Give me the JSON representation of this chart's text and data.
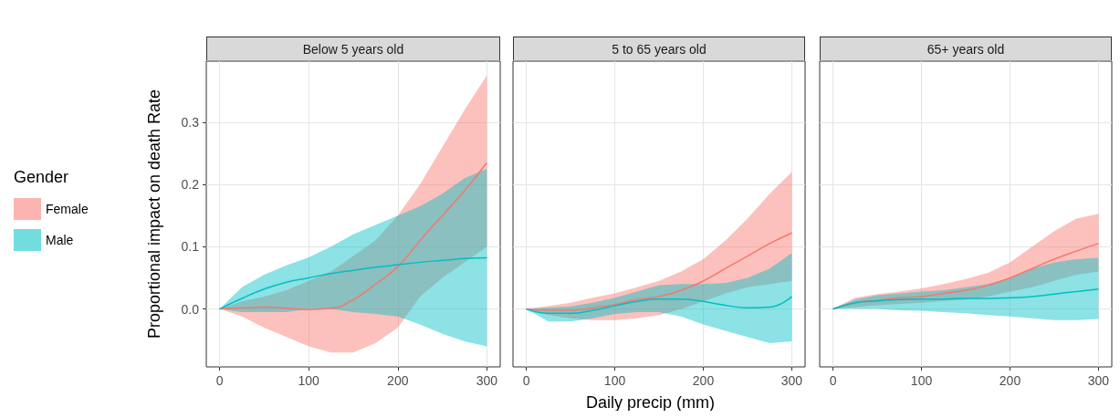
{
  "chart_data": [
    {
      "type": "line",
      "title": "Below 5 years old",
      "ylabel": "Proportional impact on death Rate",
      "legend_title": "Gender",
      "legend": "left",
      "grid": true,
      "x": [
        0,
        25,
        50,
        75,
        100,
        125,
        150,
        175,
        200,
        225,
        250,
        275,
        300
      ],
      "xlim": [
        -15,
        315
      ],
      "xticks": [
        0,
        100,
        200,
        300
      ],
      "ylim": [
        -0.093,
        0.398
      ],
      "yticks": [
        {
          "value": 0,
          "label": "0.0"
        },
        0.1,
        0.2,
        0.3
      ],
      "series": [
        {
          "name": "Female",
          "color": "#f8766d",
          "values": [
            0,
            0.002,
            0.003,
            0.001,
            -0.001,
            0.001,
            0.015,
            0.04,
            0.068,
            0.11,
            0.15,
            0.19,
            0.235
          ],
          "lower": [
            0,
            -0.012,
            -0.03,
            -0.045,
            -0.06,
            -0.07,
            -0.07,
            -0.055,
            -0.03,
            0.02,
            0.05,
            0.075,
            0.1
          ],
          "upper": [
            0,
            0.012,
            0.02,
            0.03,
            0.045,
            0.06,
            0.085,
            0.11,
            0.15,
            0.2,
            0.26,
            0.32,
            0.375
          ]
        },
        {
          "name": "Male",
          "color": "#00bfc4",
          "values": [
            0,
            0.017,
            0.032,
            0.043,
            0.05,
            0.057,
            0.062,
            0.067,
            0.071,
            0.075,
            0.078,
            0.081,
            0.082
          ],
          "lower": [
            0,
            -0.005,
            -0.005,
            -0.005,
            0,
            0,
            -0.005,
            -0.008,
            -0.012,
            -0.025,
            -0.04,
            -0.052,
            -0.06
          ],
          "upper": [
            0,
            0.035,
            0.055,
            0.07,
            0.083,
            0.1,
            0.12,
            0.135,
            0.15,
            0.165,
            0.185,
            0.21,
            0.225
          ]
        }
      ]
    },
    {
      "type": "line",
      "title": "5 to 65 years old",
      "xlabel": "Daily precip (mm)",
      "grid": true,
      "tick_labels": "x",
      "x": [
        0,
        25,
        50,
        75,
        100,
        125,
        150,
        175,
        200,
        225,
        250,
        275,
        300
      ],
      "xlim": [
        -15,
        315
      ],
      "xticks": [
        0,
        100,
        200,
        300
      ],
      "ylim": [
        -0.093,
        0.398
      ],
      "yticks": [
        0,
        0.1,
        0.2,
        0.3
      ],
      "series": [
        {
          "color": "#f8766d",
          "values": [
            0,
            -0.002,
            -0.002,
            0.002,
            0.007,
            0.015,
            0.02,
            0.03,
            0.045,
            0.065,
            0.085,
            0.105,
            0.122
          ],
          "lower": [
            0,
            -0.01,
            -0.015,
            -0.018,
            -0.018,
            -0.015,
            -0.01,
            0,
            0.012,
            0.025,
            0.035,
            0.04,
            0.045
          ],
          "upper": [
            0,
            0.005,
            0.01,
            0.018,
            0.025,
            0.035,
            0.045,
            0.06,
            0.08,
            0.11,
            0.145,
            0.185,
            0.22
          ]
        },
        {
          "color": "#00bfc4",
          "values": [
            0,
            -0.007,
            -0.007,
            -0.002,
            0.005,
            0.012,
            0.016,
            0.016,
            0.012,
            0.006,
            0.002,
            0.003,
            0.02
          ],
          "lower": [
            0,
            -0.02,
            -0.02,
            -0.015,
            -0.008,
            -0.005,
            -0.005,
            -0.012,
            -0.025,
            -0.035,
            -0.045,
            -0.055,
            -0.052
          ],
          "upper": [
            0,
            0.002,
            0.004,
            0.01,
            0.018,
            0.028,
            0.038,
            0.04,
            0.04,
            0.042,
            0.05,
            0.065,
            0.09
          ]
        }
      ]
    },
    {
      "type": "line",
      "title": "65+ years old",
      "grid": true,
      "tick_labels": "x",
      "x": [
        0,
        25,
        50,
        75,
        100,
        125,
        150,
        175,
        200,
        225,
        250,
        275,
        300
      ],
      "xlim": [
        -15,
        315
      ],
      "xticks": [
        0,
        100,
        200,
        300
      ],
      "ylim": [
        -0.093,
        0.398
      ],
      "yticks": [
        0,
        0.1,
        0.2,
        0.3
      ],
      "series": [
        {
          "color": "#f8766d",
          "values": [
            0,
            0.01,
            0.014,
            0.018,
            0.02,
            0.025,
            0.03,
            0.038,
            0.05,
            0.065,
            0.08,
            0.093,
            0.105
          ],
          "lower": [
            0,
            0.003,
            0.006,
            0.008,
            0.01,
            0.013,
            0.015,
            0.02,
            0.028,
            0.035,
            0.045,
            0.055,
            0.06
          ],
          "upper": [
            0,
            0.018,
            0.024,
            0.028,
            0.033,
            0.04,
            0.048,
            0.058,
            0.075,
            0.1,
            0.125,
            0.145,
            0.153
          ]
        },
        {
          "color": "#00bfc4",
          "values": [
            0,
            0.01,
            0.013,
            0.015,
            0.016,
            0.016,
            0.017,
            0.017,
            0.018,
            0.02,
            0.024,
            0.028,
            0.032
          ],
          "lower": [
            0,
            0,
            0,
            -0.002,
            -0.003,
            -0.005,
            -0.007,
            -0.01,
            -0.012,
            -0.015,
            -0.018,
            -0.018,
            -0.016
          ],
          "upper": [
            0,
            0.015,
            0.022,
            0.025,
            0.028,
            0.03,
            0.035,
            0.04,
            0.05,
            0.065,
            0.075,
            0.08,
            0.082
          ]
        }
      ]
    }
  ]
}
